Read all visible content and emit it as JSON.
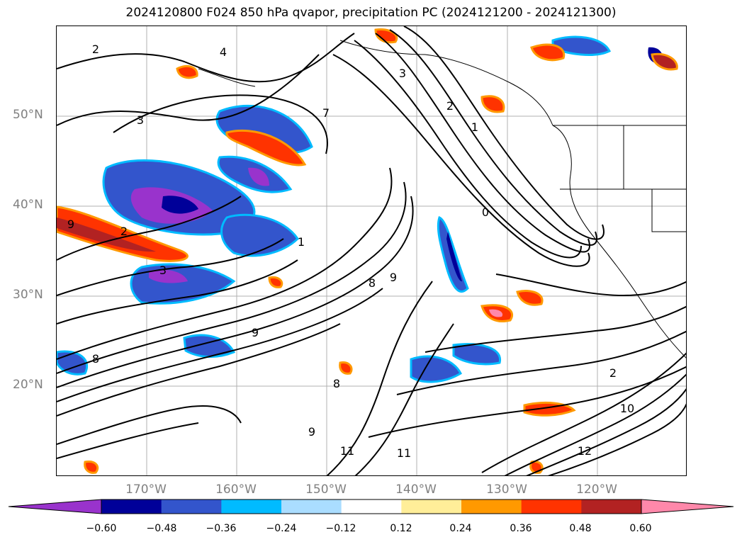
{
  "title": "2024120800 F024 850 hPa qvapor, precipitation PC (2024121200 - 2024121300)",
  "lat_labels": [
    "50°N",
    "40°N",
    "30°N",
    "20°N"
  ],
  "lon_labels": [
    "170°W",
    "160°W",
    "150°W",
    "140°W",
    "130°W",
    "120°W"
  ],
  "contour_labels": [
    "2",
    "4",
    "3",
    "7",
    "3",
    "9",
    "2",
    "8",
    "1",
    "2",
    "0",
    "3",
    "1",
    "9",
    "8",
    "11",
    "11",
    "12",
    "10",
    "9",
    "2",
    "9",
    "8"
  ],
  "colorbar": {
    "ticks": [
      "−0.60",
      "−0.48",
      "−0.36",
      "−0.24",
      "−0.12",
      "0.12",
      "0.24",
      "0.36",
      "0.48",
      "0.60"
    ],
    "colors": [
      "#9933cc",
      "#000099",
      "#3355cc",
      "#00bbff",
      "#aaddff",
      "#ffffff",
      "#ffee99",
      "#ff9900",
      "#ff3300",
      "#b22222",
      "#ff88aa"
    ]
  }
}
